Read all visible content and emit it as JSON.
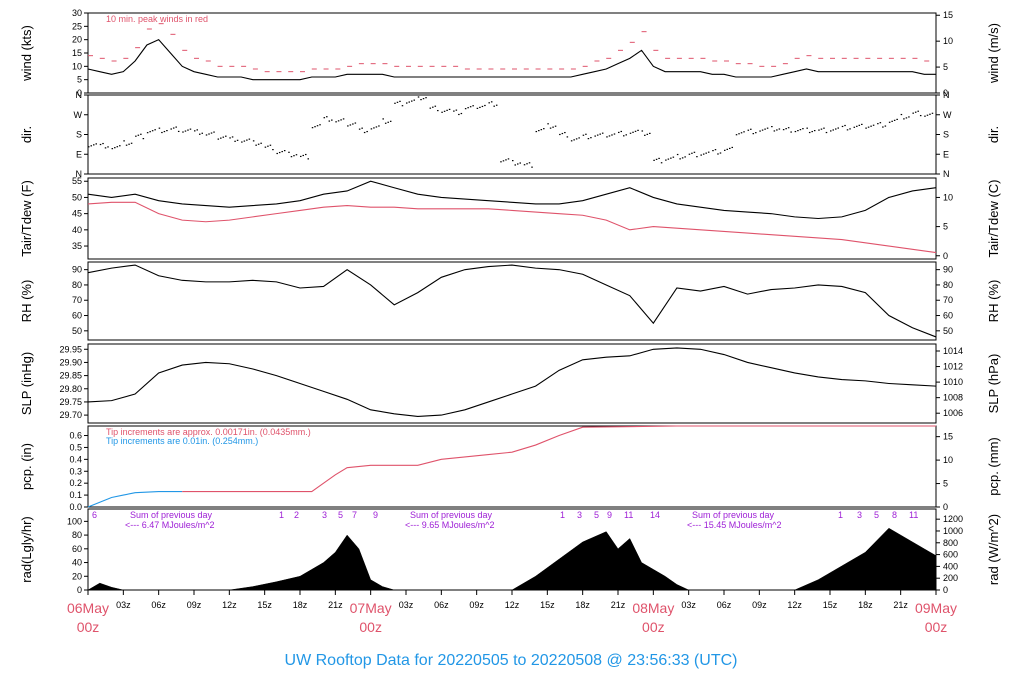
{
  "title": "UW Rooftop Data for 20220505  to  20220508 @ 23:56:33  (UTC)",
  "colors": {
    "pink": "#df536b",
    "blue": "#2297e6",
    "purple": "#9e1fd6",
    "black": "#000000"
  },
  "chart_data": [
    {
      "type": "line",
      "panel": "wind",
      "ylabel_left": "wind (kts)",
      "ylabel_right": "wind (m/s)",
      "annotation": "10 min. peak winds in red",
      "ylim": [
        0,
        30
      ],
      "left_ticks": [
        "0",
        "5",
        "10",
        "15",
        "20",
        "25",
        "30"
      ],
      "right_ticks": [
        "0",
        "5",
        "10",
        "15"
      ],
      "series": [
        {
          "color": "#000000",
          "x": [
            0,
            1,
            2,
            3,
            4,
            5,
            6,
            7,
            8,
            9,
            10,
            11,
            12,
            13,
            14,
            15,
            16,
            17,
            18,
            19,
            20,
            21,
            22,
            23,
            24,
            25,
            26,
            27,
            28,
            29,
            30,
            31,
            32,
            33,
            34,
            35,
            36,
            37,
            38,
            39,
            40,
            41,
            42,
            43,
            44,
            45,
            46,
            47,
            48,
            49,
            50,
            51,
            52,
            53,
            54,
            55,
            56,
            57,
            58,
            59,
            60,
            61,
            62,
            63,
            64,
            65,
            66,
            67,
            68,
            69,
            70,
            71,
            72
          ],
          "values": [
            9,
            8,
            7,
            8,
            12,
            18,
            20,
            15,
            10,
            8,
            7,
            6,
            6,
            6,
            5,
            5,
            5,
            5,
            5,
            6,
            6,
            6,
            7,
            7,
            7,
            7,
            6,
            6,
            6,
            6,
            6,
            6,
            6,
            6,
            6,
            6,
            6,
            6,
            6,
            6,
            6,
            6,
            7,
            8,
            9,
            11,
            13,
            16,
            10,
            8,
            8,
            8,
            8,
            7,
            7,
            6,
            6,
            6,
            6,
            7,
            8,
            9,
            8,
            8,
            8,
            8,
            8,
            8,
            8,
            8,
            8,
            7,
            7
          ]
        },
        {
          "color": "#df536b",
          "x": [
            0,
            1,
            2,
            3,
            4,
            5,
            6,
            7,
            8,
            9,
            10,
            11,
            12,
            13,
            14,
            15,
            16,
            17,
            18,
            19,
            20,
            21,
            22,
            23,
            24,
            25,
            26,
            27,
            28,
            29,
            30,
            31,
            32,
            33,
            34,
            35,
            36,
            37,
            38,
            39,
            40,
            41,
            42,
            43,
            44,
            45,
            46,
            47,
            48,
            49,
            50,
            51,
            52,
            53,
            54,
            55,
            56,
            57,
            58,
            59,
            60,
            61,
            62,
            63,
            64,
            65,
            66,
            67,
            68,
            69,
            70,
            71,
            72
          ],
          "values": [
            14,
            13,
            12,
            13,
            17,
            24,
            26,
            22,
            16,
            13,
            12,
            10,
            10,
            10,
            9,
            8,
            8,
            8,
            8,
            9,
            9,
            9,
            10,
            11,
            11,
            11,
            10,
            10,
            10,
            10,
            10,
            10,
            9,
            9,
            9,
            9,
            9,
            9,
            9,
            9,
            9,
            9,
            10,
            12,
            13,
            16,
            19,
            23,
            16,
            13,
            13,
            13,
            13,
            12,
            12,
            11,
            11,
            10,
            10,
            11,
            13,
            14,
            13,
            13,
            13,
            13,
            13,
            13,
            13,
            13,
            13,
            12,
            12
          ]
        }
      ]
    },
    {
      "type": "scatter",
      "panel": "dir",
      "ylabel_left": "dir.",
      "ylabel_right": "dir.",
      "ylim": [
        0,
        360
      ],
      "left_ticks": [
        "N",
        "E",
        "S",
        "W",
        "N"
      ],
      "right_ticks": [
        "N",
        "E",
        "S",
        "W",
        "N"
      ],
      "series": [
        {
          "color": "#000000",
          "x": [
            0,
            1,
            2,
            3,
            4,
            5,
            6,
            7,
            8,
            9,
            10,
            11,
            12,
            13,
            14,
            15,
            16,
            17,
            18,
            19,
            20,
            21,
            22,
            23,
            24,
            25,
            26,
            27,
            28,
            29,
            30,
            31,
            32,
            33,
            34,
            35,
            36,
            37,
            38,
            39,
            40,
            41,
            42,
            43,
            44,
            45,
            46,
            47,
            48,
            49,
            50,
            51,
            52,
            53,
            54,
            55,
            56,
            57,
            58,
            59,
            60,
            61,
            62,
            63,
            64,
            65,
            66,
            67,
            68,
            69,
            70,
            71,
            72
          ],
          "values": [
            135,
            130,
            120,
            140,
            170,
            195,
            200,
            205,
            200,
            190,
            180,
            170,
            160,
            150,
            140,
            120,
            100,
            90,
            80,
            220,
            250,
            240,
            230,
            200,
            210,
            240,
            320,
            330,
            350,
            300,
            290,
            280,
            300,
            310,
            320,
            60,
            50,
            40,
            200,
            220,
            180,
            160,
            170,
            175,
            180,
            185,
            190,
            185,
            60,
            70,
            80,
            90,
            95,
            100,
            110,
            190,
            195,
            200,
            205,
            200,
            200,
            200,
            200,
            205,
            210,
            215,
            220,
            225,
            240,
            260,
            275,
            270,
            265
          ]
        }
      ]
    },
    {
      "type": "line",
      "panel": "temperature",
      "ylabel_left": "Tair/Tdew (F)",
      "ylabel_right": "Tair/Tdew (C)",
      "ylim": [
        31,
        56
      ],
      "left_ticks": [
        "35",
        "40",
        "45",
        "50",
        "55"
      ],
      "right_ticks": [
        "0",
        "5",
        "10"
      ],
      "series": [
        {
          "color": "#000000",
          "x": [
            0,
            2,
            4,
            6,
            8,
            10,
            12,
            14,
            16,
            18,
            20,
            22,
            24,
            26,
            28,
            30,
            32,
            34,
            36,
            38,
            40,
            42,
            44,
            46,
            48,
            50,
            52,
            54,
            56,
            58,
            60,
            62,
            64,
            66,
            68,
            70,
            72
          ],
          "values": [
            51,
            50,
            51,
            49,
            48,
            47.5,
            47,
            47.5,
            48,
            49,
            51,
            52,
            55,
            53,
            51,
            50,
            49.5,
            49,
            48.5,
            48,
            48,
            49,
            51,
            53,
            50,
            48,
            47,
            46,
            45.5,
            45,
            44,
            43.5,
            44,
            46,
            50,
            52,
            53
          ]
        },
        {
          "color": "#df536b",
          "x": [
            0,
            2,
            4,
            6,
            8,
            10,
            12,
            14,
            16,
            18,
            20,
            22,
            24,
            26,
            28,
            30,
            32,
            34,
            36,
            38,
            40,
            42,
            44,
            46,
            48,
            50,
            52,
            54,
            56,
            58,
            60,
            62,
            64,
            66,
            68,
            70,
            72
          ],
          "values": [
            48,
            48.5,
            48.5,
            45,
            43,
            42.5,
            43,
            44,
            45,
            46,
            47,
            47.5,
            47,
            47,
            46.5,
            46.5,
            46.5,
            46.5,
            46,
            45.5,
            45,
            44.5,
            43,
            40,
            41,
            40.5,
            40,
            39.5,
            39,
            38.5,
            38,
            37.5,
            37,
            36,
            35,
            34,
            33
          ]
        }
      ]
    },
    {
      "type": "line",
      "panel": "rh",
      "ylabel_left": "RH (%)",
      "ylabel_right": "RH (%)",
      "ylim": [
        44,
        95
      ],
      "left_ticks": [
        "50",
        "60",
        "70",
        "80",
        "90"
      ],
      "right_ticks": [
        "50",
        "60",
        "70",
        "80",
        "90"
      ],
      "series": [
        {
          "color": "#000000",
          "x": [
            0,
            2,
            4,
            6,
            8,
            10,
            12,
            14,
            16,
            18,
            20,
            22,
            24,
            26,
            28,
            30,
            32,
            34,
            36,
            38,
            40,
            42,
            44,
            46,
            48,
            50,
            52,
            54,
            56,
            58,
            60,
            62,
            64,
            66,
            68,
            70,
            72
          ],
          "values": [
            88,
            91,
            93,
            86,
            83,
            82,
            82,
            83,
            82,
            78,
            79,
            90,
            80,
            67,
            75,
            85,
            90,
            92,
            93,
            91,
            90,
            87,
            80,
            73,
            55,
            78,
            76,
            79,
            74,
            77,
            78,
            80,
            79,
            75,
            60,
            52,
            46
          ]
        }
      ]
    },
    {
      "type": "line",
      "panel": "slp",
      "ylabel_left": "SLP (inHg)",
      "ylabel_right": "SLP (hPa)",
      "ylim": [
        29.67,
        29.97
      ],
      "left_ticks": [
        "29.70",
        "29.75",
        "29.80",
        "29.85",
        "29.90",
        "29.95"
      ],
      "right_ticks": [
        "1006",
        "1008",
        "1010",
        "1012",
        "1014"
      ],
      "series": [
        {
          "color": "#000000",
          "x": [
            0,
            2,
            4,
            6,
            8,
            10,
            12,
            14,
            16,
            18,
            20,
            22,
            24,
            26,
            28,
            30,
            32,
            34,
            36,
            38,
            40,
            42,
            44,
            46,
            48,
            50,
            52,
            54,
            56,
            58,
            60,
            62,
            64,
            66,
            68,
            70,
            72
          ],
          "values": [
            29.75,
            29.755,
            29.78,
            29.86,
            29.89,
            29.9,
            29.895,
            29.875,
            29.85,
            29.82,
            29.79,
            29.76,
            29.72,
            29.705,
            29.695,
            29.7,
            29.72,
            29.75,
            29.78,
            29.81,
            29.87,
            29.91,
            29.92,
            29.925,
            29.95,
            29.955,
            29.95,
            29.93,
            29.9,
            29.88,
            29.86,
            29.845,
            29.835,
            29.83,
            29.82,
            29.815,
            29.81
          ]
        }
      ]
    },
    {
      "type": "line",
      "panel": "precip",
      "ylabel_left": "pcp. (in)",
      "ylabel_right": "pcp. (mm)",
      "annotations": [
        "Tip increments are approx. 0.00171in. (0.0435mm.)",
        "Tip increments are 0.01in. (0.254mm.)"
      ],
      "ylim": [
        0,
        0.68
      ],
      "left_ticks": [
        "0.0",
        "0.1",
        "0.2",
        "0.3",
        "0.4",
        "0.5",
        "0.6"
      ],
      "right_ticks": [
        "0",
        "5",
        "10",
        "15"
      ],
      "series": [
        {
          "color": "#2297e6",
          "x": [
            0,
            1,
            2,
            3,
            4,
            6,
            8
          ],
          "values": [
            0,
            0.04,
            0.08,
            0.1,
            0.12,
            0.13,
            0.13
          ]
        },
        {
          "color": "#df536b",
          "x": [
            8,
            12,
            16,
            19,
            20,
            21,
            22,
            24,
            28,
            30,
            32,
            34,
            36,
            38,
            40,
            42,
            50,
            60,
            72
          ],
          "values": [
            0.13,
            0.13,
            0.13,
            0.13,
            0.2,
            0.27,
            0.33,
            0.35,
            0.35,
            0.4,
            0.42,
            0.44,
            0.46,
            0.52,
            0.6,
            0.67,
            0.68,
            0.68,
            0.68
          ]
        }
      ]
    },
    {
      "type": "area",
      "panel": "radiation",
      "ylabel_left": "rad(Lgly/hr)",
      "ylabel_right": "rad (W/m^2)",
      "ylim": [
        0,
        118
      ],
      "left_ticks": [
        "0",
        "20",
        "40",
        "60",
        "80",
        "100"
      ],
      "right_ticks": [
        "0",
        "200",
        "400",
        "600",
        "800",
        "1000",
        "1200"
      ],
      "daily_sums": [
        "Sum of previous day",
        "<--- 6.47 MJoules/m^2",
        "Sum of previous day",
        "<--- 9.65 MJoules/m^2",
        "Sum of previous day",
        "<--- 15.45 MJoules/m^2"
      ],
      "markers": [
        "6",
        "1",
        "2",
        "3",
        "5",
        "7",
        "9",
        "1",
        "3",
        "5",
        "9",
        "11",
        "14",
        "1",
        "3",
        "5",
        "8",
        "11"
      ],
      "series": [
        {
          "color": "#000000",
          "x": [
            0,
            1,
            2,
            3,
            12,
            14,
            16,
            18,
            19,
            20,
            21,
            22,
            23,
            24,
            25,
            26,
            27,
            36,
            38,
            40,
            42,
            44,
            45,
            46,
            47,
            48,
            49,
            50,
            51,
            60,
            62,
            64,
            66,
            68,
            69,
            70,
            71,
            72
          ],
          "values": [
            0,
            10,
            4,
            0,
            0,
            5,
            12,
            20,
            30,
            40,
            55,
            80,
            60,
            15,
            5,
            0,
            0,
            0,
            20,
            45,
            70,
            85,
            60,
            75,
            40,
            30,
            20,
            8,
            0,
            0,
            15,
            35,
            55,
            90,
            80,
            70,
            60,
            50
          ]
        }
      ]
    }
  ],
  "x_axis": {
    "ticks": [
      "06May",
      "03z",
      "06z",
      "09z",
      "12z",
      "15z",
      "18z",
      "21z",
      "07May",
      "03z",
      "06z",
      "09z",
      "12z",
      "15z",
      "18z",
      "21z",
      "08May",
      "03z",
      "06z",
      "09z",
      "12z",
      "15z",
      "18z",
      "21z",
      "09May"
    ],
    "day_subs": [
      "00z",
      "00z",
      "00z",
      "00z"
    ]
  }
}
